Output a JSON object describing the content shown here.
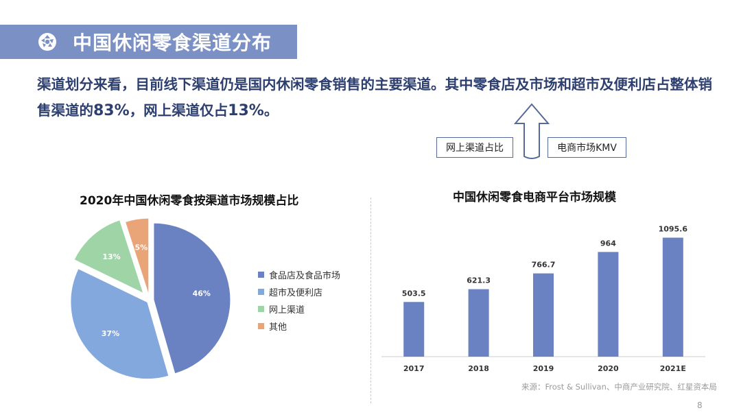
{
  "header": {
    "title": "中国休闲零食渠道分布",
    "icon": "aperture-icon"
  },
  "summary": {
    "part1": "渠道划分来看，目前线下渠道仍是国内休闲零食销售的主要渠道。其中零食店及市场和超市及便利店占整体销售渠道的",
    "value1": "83%",
    "part2": "，网上渠道仅占",
    "value2": "13%",
    "part3": "。"
  },
  "flow": {
    "left_label": "网上渠道占比",
    "right_label": "电商市场KMV"
  },
  "source": "来源：Frost & Sullivan、中商产业研究院、红星资本局",
  "page_number": "8",
  "colors": {
    "title_bg": "#7b90c4",
    "summary_text": "#2c3f6e",
    "slice_1": "#6a82c1",
    "slice_2": "#82a8de",
    "slice_3": "#9fd4a7",
    "slice_4": "#e9a577",
    "bar": "#6a82c1"
  },
  "chart_data": [
    {
      "type": "pie",
      "title": "2020年中国休闲零食按渠道市场规模占比",
      "labels": [
        "食品店及食品市场",
        "超市及便利店",
        "网上渠道",
        "其他"
      ],
      "values": [
        46,
        37,
        13,
        5
      ],
      "value_labels": [
        "46%",
        "37%",
        "13%",
        "5%"
      ],
      "exploded": true,
      "legend_position": "right"
    },
    {
      "type": "bar",
      "title": "中国休闲零食电商平台市场规模",
      "categories": [
        "2017",
        "2018",
        "2019",
        "2020",
        "2021E"
      ],
      "values": [
        503.5,
        621.3,
        766.7,
        964,
        1095.6
      ],
      "value_labels": [
        "503.5",
        "621.3",
        "766.7",
        "964",
        "1095.6"
      ],
      "ylim": [
        0,
        1200
      ],
      "grid": false
    }
  ]
}
